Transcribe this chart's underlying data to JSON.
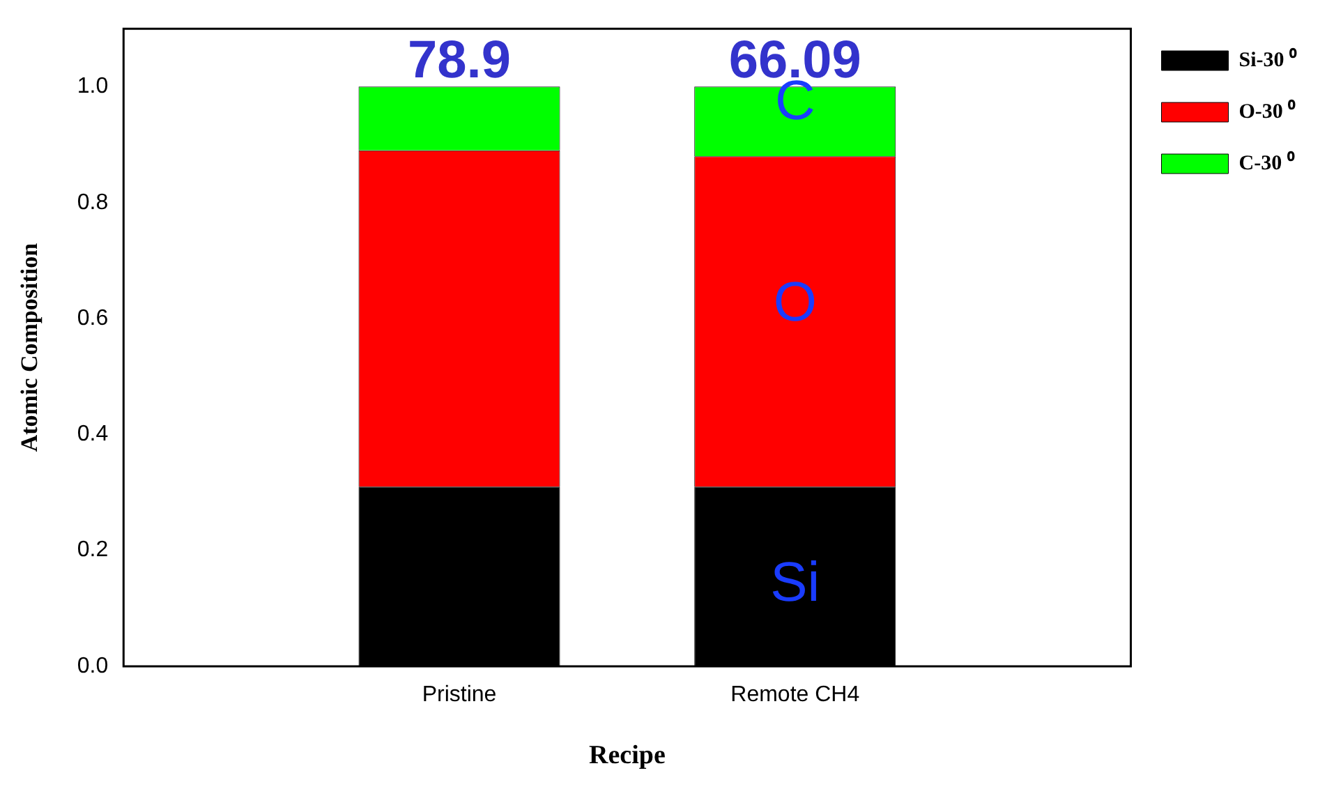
{
  "chart_data": {
    "type": "bar",
    "stacked": true,
    "xlabel": "Recipe",
    "ylabel": "Atomic Composition",
    "categories": [
      "Pristine",
      "Remote CH4"
    ],
    "series": [
      {
        "name": "Si-30 ⁰",
        "color": "#000000",
        "values": [
          0.31,
          0.31
        ]
      },
      {
        "name": "O-30 ⁰",
        "color": "#ff0000",
        "values": [
          0.58,
          0.57
        ]
      },
      {
        "name": "C-30 ⁰",
        "color": "#00ff00",
        "values": [
          0.11,
          0.12
        ]
      }
    ],
    "ylim": [
      0,
      1.1
    ],
    "yticks": [
      {
        "value": 0,
        "label": "0.0"
      },
      {
        "value": 0.2,
        "label": "0.2"
      },
      {
        "value": 0.4,
        "label": "0.4"
      },
      {
        "value": 0.6,
        "label": "0.6"
      },
      {
        "value": 0.8,
        "label": "0.8"
      },
      {
        "value": 1,
        "label": "1.0"
      }
    ],
    "legend": "right",
    "annotations": [
      {
        "text": "78.9",
        "x": "Pristine",
        "y": 1.0
      },
      {
        "text": "66.09",
        "x": "Remote CH4",
        "y": 1.0
      },
      "C",
      "O",
      "Si"
    ]
  }
}
